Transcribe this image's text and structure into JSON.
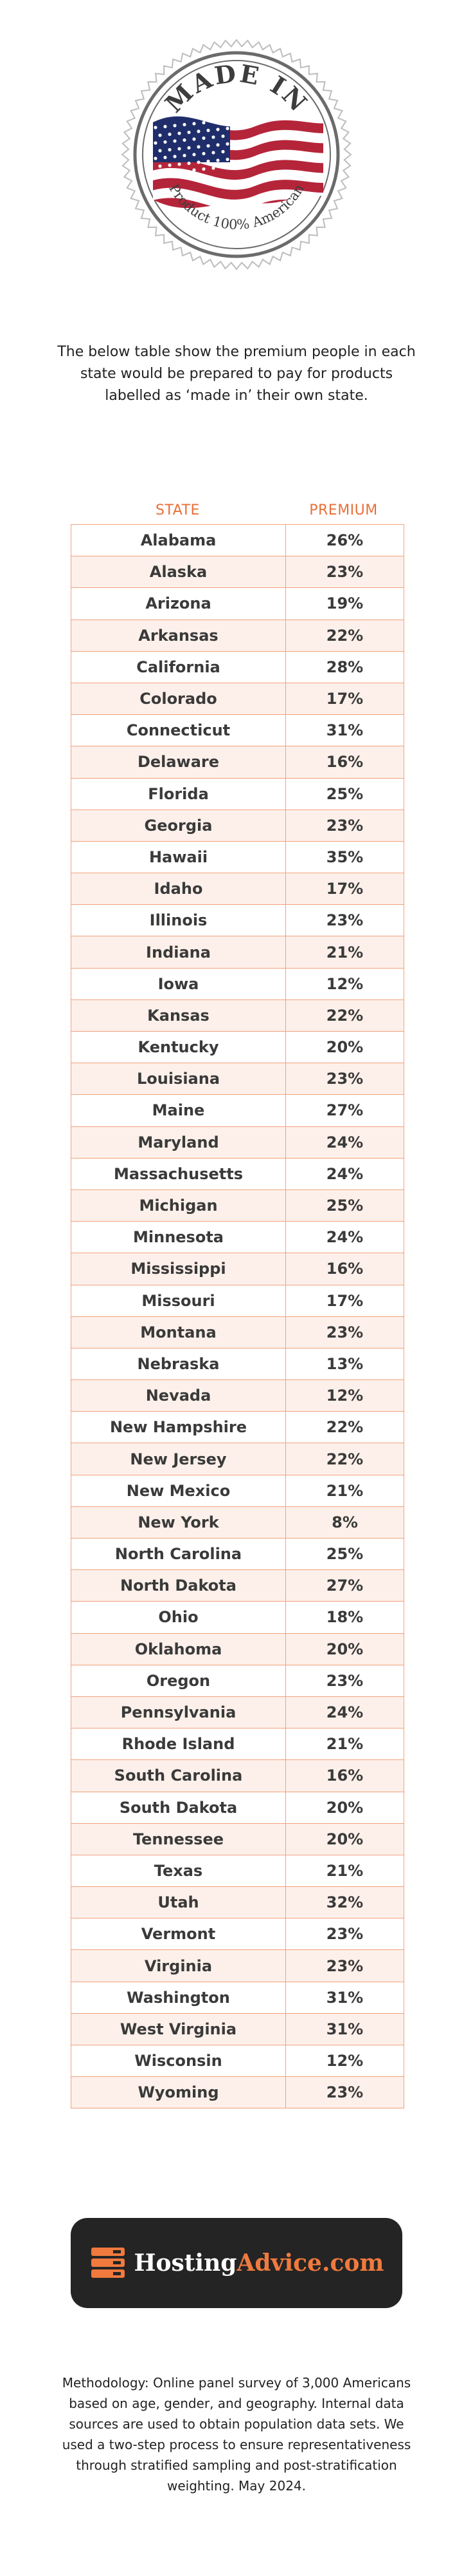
{
  "seal": {
    "title": "MADE IN",
    "subtitle": "Product 100% American",
    "colors": {
      "red": "#b5253a",
      "blue": "#1f2e6b",
      "ring": "#6b6b6b"
    }
  },
  "intro_text": "The below table show the premium people in each state would be prepared to pay for products labelled as ‘made in’ their own state.",
  "chart_data": {
    "type": "table",
    "columns": [
      "STATE",
      "PREMIUM"
    ],
    "rows": [
      {
        "state": "Alabama",
        "premium": "26%"
      },
      {
        "state": "Alaska",
        "premium": "23%"
      },
      {
        "state": "Arizona",
        "premium": "19%"
      },
      {
        "state": "Arkansas",
        "premium": "22%"
      },
      {
        "state": "California",
        "premium": "28%"
      },
      {
        "state": "Colorado",
        "premium": "17%"
      },
      {
        "state": "Connecticut",
        "premium": "31%"
      },
      {
        "state": "Delaware",
        "premium": "16%"
      },
      {
        "state": "Florida",
        "premium": "25%"
      },
      {
        "state": "Georgia",
        "premium": "23%"
      },
      {
        "state": "Hawaii",
        "premium": "35%"
      },
      {
        "state": "Idaho",
        "premium": "17%"
      },
      {
        "state": "Illinois",
        "premium": "23%"
      },
      {
        "state": "Indiana",
        "premium": "21%"
      },
      {
        "state": "Iowa",
        "premium": "12%"
      },
      {
        "state": "Kansas",
        "premium": "22%"
      },
      {
        "state": "Kentucky",
        "premium": "20%"
      },
      {
        "state": "Louisiana",
        "premium": "23%"
      },
      {
        "state": "Maine",
        "premium": "27%"
      },
      {
        "state": "Maryland",
        "premium": "24%"
      },
      {
        "state": "Massachusetts",
        "premium": "24%"
      },
      {
        "state": "Michigan",
        "premium": "25%"
      },
      {
        "state": "Minnesota",
        "premium": "24%"
      },
      {
        "state": "Mississippi",
        "premium": "16%"
      },
      {
        "state": "Missouri",
        "premium": "17%"
      },
      {
        "state": "Montana",
        "premium": "23%"
      },
      {
        "state": "Nebraska",
        "premium": "13%"
      },
      {
        "state": "Nevada",
        "premium": "12%"
      },
      {
        "state": "New Hampshire",
        "premium": "22%"
      },
      {
        "state": "New Jersey",
        "premium": "22%"
      },
      {
        "state": "New Mexico",
        "premium": "21%"
      },
      {
        "state": "New York",
        "premium": "8%"
      },
      {
        "state": "North Carolina",
        "premium": "25%"
      },
      {
        "state": "North Dakota",
        "premium": "27%"
      },
      {
        "state": "Ohio",
        "premium": "18%"
      },
      {
        "state": "Oklahoma",
        "premium": "20%"
      },
      {
        "state": "Oregon",
        "premium": "23%"
      },
      {
        "state": "Pennsylvania",
        "premium": "24%"
      },
      {
        "state": "Rhode Island",
        "premium": "21%"
      },
      {
        "state": "South Carolina",
        "premium": "16%"
      },
      {
        "state": "South Dakota",
        "premium": "20%"
      },
      {
        "state": "Tennessee",
        "premium": "20%"
      },
      {
        "state": "Texas",
        "premium": "21%"
      },
      {
        "state": "Utah",
        "premium": "32%"
      },
      {
        "state": "Vermont",
        "premium": "23%"
      },
      {
        "state": "Virginia",
        "premium": "23%"
      },
      {
        "state": "Washington",
        "premium": "31%"
      },
      {
        "state": "West Virginia",
        "premium": "31%"
      },
      {
        "state": "Wisconsin",
        "premium": "12%"
      },
      {
        "state": "Wyoming",
        "premium": "23%"
      }
    ],
    "colors": {
      "header": "#e8703a",
      "border": "#f2a27d",
      "stripe": "#fdf0ea"
    }
  },
  "logo": {
    "name_part1": "Hosting",
    "name_part2": "Advice.com",
    "icon": "server-stack-icon",
    "colors": {
      "bg": "#242424",
      "accent": "#f07a3e"
    }
  },
  "methodology": "Methodology: Online panel survey of 3,000 Americans based on age, gender, and geography. Internal data sources are used to obtain population data sets. We used a two-step process to ensure representativeness through stratified sampling and post-stratification weighting. May 2024."
}
